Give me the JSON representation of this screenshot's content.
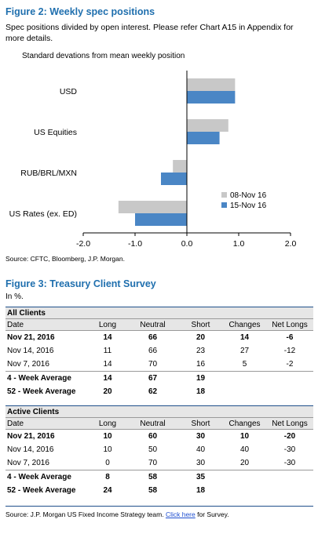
{
  "figure2": {
    "title": "Figure 2: Weekly spec positions",
    "subtitle": "Spec positions divided by open interest. Please refer Chart A15 in Appendix for more details.",
    "source": "Source: CFTC, Bloomberg, J.P. Morgan."
  },
  "chart_data": {
    "type": "bar",
    "orientation": "horizontal",
    "title": "Standard devations from mean weekly position",
    "categories": [
      "USD",
      "US Equities",
      "RUB/BRL/MXN",
      "US Rates (ex. ED)"
    ],
    "series": [
      {
        "name": "08-Nov 16",
        "color": "#c8c8c8",
        "values": [
          0.93,
          0.8,
          -0.27,
          -1.32
        ]
      },
      {
        "name": "15-Nov 16",
        "color": "#4a86c5",
        "values": [
          0.93,
          0.63,
          -0.5,
          -1.0
        ]
      }
    ],
    "xlim": [
      -2.0,
      2.0
    ],
    "xticks": [
      "-2.0",
      "-1.0",
      "0.0",
      "1.0",
      "2.0"
    ],
    "legend_position": "bottom-right",
    "grid": false
  },
  "figure3": {
    "title": "Figure 3: Treasury Client Survey",
    "unit": "In %.",
    "columns": [
      "Date",
      "Long",
      "Neutral",
      "Short",
      "Changes",
      "Net Longs"
    ],
    "all_clients": {
      "heading": "All Clients",
      "rows": [
        {
          "cells": [
            "Nov 21, 2016",
            "14",
            "66",
            "20",
            "14",
            "-6"
          ],
          "bold": true
        },
        {
          "cells": [
            "Nov 14, 2016",
            "11",
            "66",
            "23",
            "27",
            "-12"
          ],
          "bold": false
        },
        {
          "cells": [
            "Nov 7, 2016",
            "14",
            "70",
            "16",
            "5",
            "-2"
          ],
          "bold": false
        },
        {
          "cells": [
            "4 - Week Average",
            "14",
            "67",
            "19",
            "",
            ""
          ],
          "bold": true
        },
        {
          "cells": [
            "52 - Week Average",
            "20",
            "62",
            "18",
            "",
            ""
          ],
          "bold": true
        }
      ]
    },
    "active_clients": {
      "heading": "Active Clients",
      "rows": [
        {
          "cells": [
            "Nov 21, 2016",
            "10",
            "60",
            "30",
            "10",
            "-20"
          ],
          "bold": true
        },
        {
          "cells": [
            "Nov 14, 2016",
            "10",
            "50",
            "40",
            "40",
            "-30"
          ],
          "bold": false
        },
        {
          "cells": [
            "Nov 7, 2016",
            "0",
            "70",
            "30",
            "20",
            "-30"
          ],
          "bold": false
        },
        {
          "cells": [
            "4 - Week Average",
            "8",
            "58",
            "35",
            "",
            ""
          ],
          "bold": true
        },
        {
          "cells": [
            "52 - Week Average",
            "24",
            "58",
            "18",
            "",
            ""
          ],
          "bold": true
        }
      ]
    },
    "source_prefix": "Source: J.P. Morgan US Fixed Income Strategy team.",
    "link_text": "Click here",
    "source_suffix": "for Survey."
  }
}
